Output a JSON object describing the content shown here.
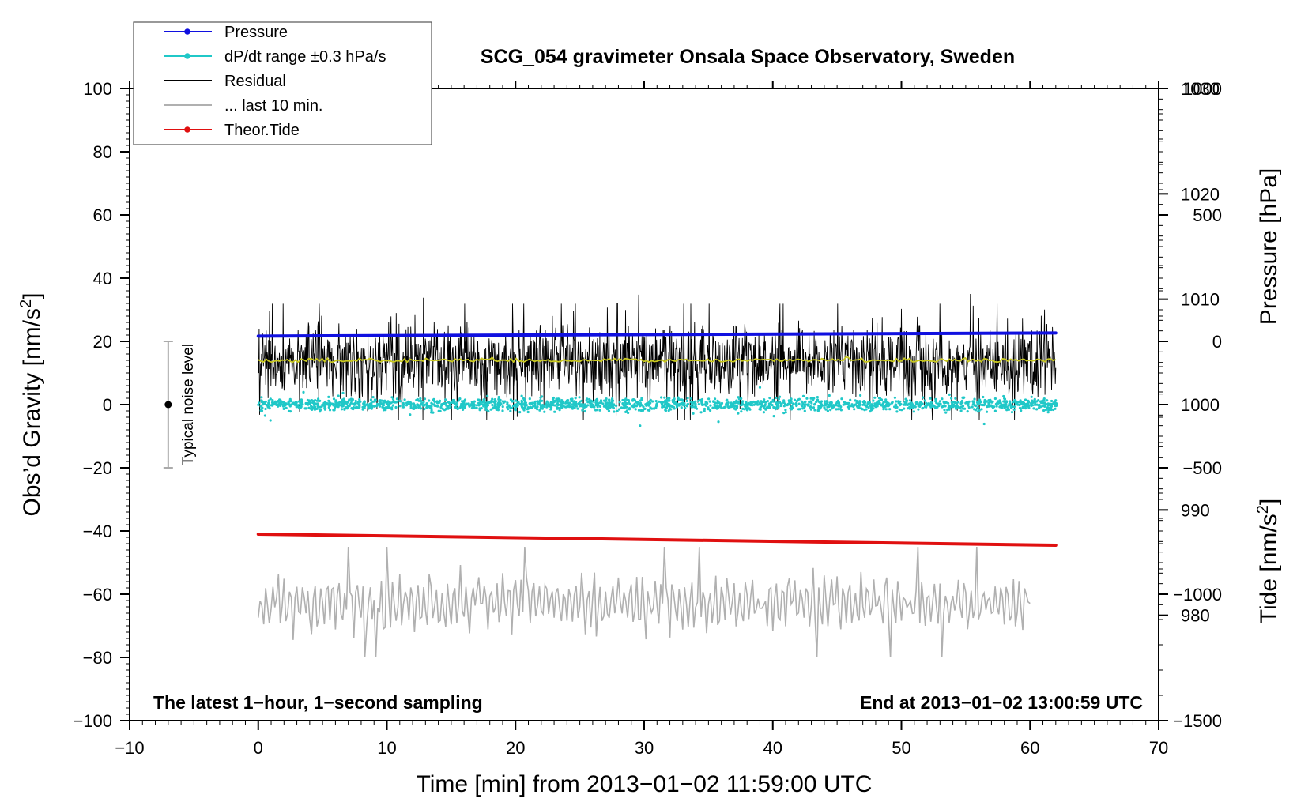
{
  "chart_data": {
    "type": "line",
    "title": "SCG_054 gravimeter Onsala Space Observatory, Sweden",
    "xlabel": "Time [min] from 2013−01−02 11:59:00 UTC",
    "ylabel_left_main": "Obs’d Gravity [nm/s",
    "ylabel_left_sup": "2",
    "ylabel_left_end": "]",
    "ylabel_right_pressure": "Pressure [hPa]",
    "ylabel_right_tide_main": "Tide [nm/s",
    "ylabel_right_tide_sup": "2",
    "ylabel_right_tide_end": "]",
    "xlim": [
      -10,
      70
    ],
    "ylim_left": [
      -100,
      100
    ],
    "ylim_pressure": [
      970,
      1030
    ],
    "ylim_tide": [
      -1500,
      1000
    ],
    "xticks": [
      "−10",
      "0",
      "10",
      "20",
      "30",
      "40",
      "50",
      "60",
      "70"
    ],
    "xtick_values": [
      -10,
      0,
      10,
      20,
      30,
      40,
      50,
      60,
      70
    ],
    "yticks_left": [
      "100",
      "80",
      "60",
      "40",
      "20",
      "0",
      "−20",
      "−40",
      "−60",
      "−80",
      "−100"
    ],
    "ytick_values_left": [
      100,
      80,
      60,
      40,
      20,
      0,
      -20,
      -40,
      -60,
      -80,
      -100
    ],
    "yticks_pressure": [
      "1030",
      "1020",
      "1010",
      "1000",
      "990",
      "980"
    ],
    "ytick_values_pressure": [
      1030,
      1020,
      1010,
      1000,
      990,
      980
    ],
    "yticks_tide": [
      "1000",
      "500",
      "0",
      "−500",
      "−1000",
      "−1500"
    ],
    "ytick_values_tide": [
      1000,
      500,
      0,
      -500,
      -1000,
      -1500
    ],
    "bottom_left_note": "The latest 1−hour, 1−second sampling",
    "bottom_right_note": "End at 2013−01−02 13:00:59 UTC",
    "noise_bar_label": "Typical noise level",
    "noise_bar": {
      "x": -7,
      "center": 0,
      "low": -20,
      "high": 20
    },
    "legend": [
      {
        "label": "Pressure",
        "color": "#1010e0",
        "marker": true
      },
      {
        "label": "dP/dt range ±0.3 hPa/s",
        "color": "#20c8c8",
        "marker": true
      },
      {
        "label": "Residual",
        "color": "#000000",
        "marker": false
      },
      {
        "label": "... last 10 min.",
        "color": "#b0b0b0",
        "marker": false
      },
      {
        "label": "Theor.Tide",
        "color": "#e01010",
        "marker": true
      }
    ],
    "series": [
      {
        "name": "Pressure",
        "axis": "pressure",
        "color": "#1010e0",
        "x_range": [
          0,
          62
        ],
        "start": 1006.5,
        "end": 1006.8
      },
      {
        "name": "dP/dt range ±0.3 hPa/s",
        "axis": "pressure",
        "color": "#20c8c8",
        "x_range": [
          0,
          62
        ],
        "center": 1000,
        "spread": 0.5,
        "outlier_spread": 2.2
      },
      {
        "name": "Residual",
        "axis": "left",
        "color": "#000000",
        "x_range": [
          0,
          62
        ],
        "mean": 13.5,
        "spread": 8,
        "min": -8,
        "max": 35
      },
      {
        "name": "Residual smoothed",
        "axis": "left",
        "color": "#c8c820",
        "x_range": [
          0,
          62
        ],
        "mean": 14
      },
      {
        "name": "Theor.Tide",
        "axis": "left",
        "color": "#e01010",
        "x_range": [
          0,
          62
        ],
        "start": -41,
        "end": -44.5
      },
      {
        "name": "... last 10 min.",
        "axis": "left",
        "color": "#b0b0b0",
        "x_range": [
          0,
          60
        ],
        "mean": -63,
        "spread": 6,
        "min": -80,
        "max": -40
      }
    ]
  }
}
